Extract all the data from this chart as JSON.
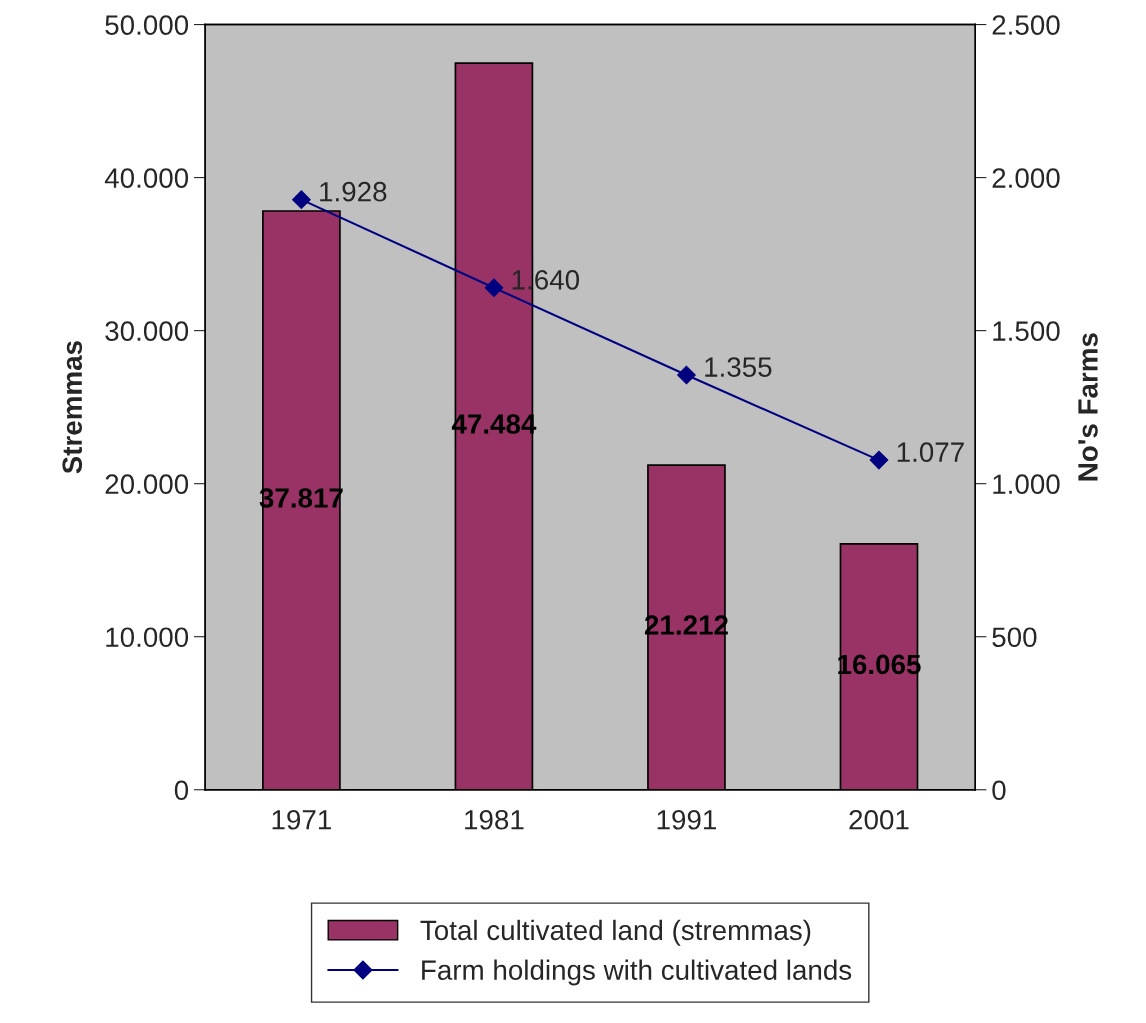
{
  "chart_data": {
    "type": "bar",
    "categories": [
      "1971",
      "1981",
      "1991",
      "2001"
    ],
    "ylabel": "Stremmas",
    "y2label": "No's Farms",
    "ylim": [
      0,
      50000
    ],
    "yticks": [
      0,
      {
        "value": 10000,
        "label": "10.000"
      },
      {
        "value": 20000,
        "label": "20.000"
      },
      {
        "value": 30000,
        "label": "30.000"
      },
      {
        "value": 40000,
        "label": "40.000"
      },
      {
        "value": 50000,
        "label": "50.000"
      }
    ],
    "y2lim": [
      0,
      2500
    ],
    "y2ticks": [
      0,
      500,
      {
        "value": 1000,
        "label": "1.000"
      },
      {
        "value": 1500,
        "label": "1.500"
      },
      {
        "value": 2000,
        "label": "2.000"
      },
      {
        "value": 2500,
        "label": "2.500"
      }
    ],
    "grid": false,
    "legend": "bottom",
    "series": [
      {
        "name": "Total cultivated land (stremmas)",
        "color": "#993366",
        "values": [
          37817,
          47484,
          21212,
          16065
        ],
        "value_labels": [
          "37.817",
          "47.484",
          "21.212",
          "16.065"
        ]
      },
      {
        "name": "Farm holdings with cultivated lands",
        "type": "line",
        "axis": "y2",
        "color": "#000080",
        "marker": "diamond",
        "values": [
          1928,
          1640,
          1355,
          1077
        ],
        "value_labels": [
          "1.928",
          "1.640",
          "1.355",
          "1.077"
        ]
      }
    ]
  }
}
